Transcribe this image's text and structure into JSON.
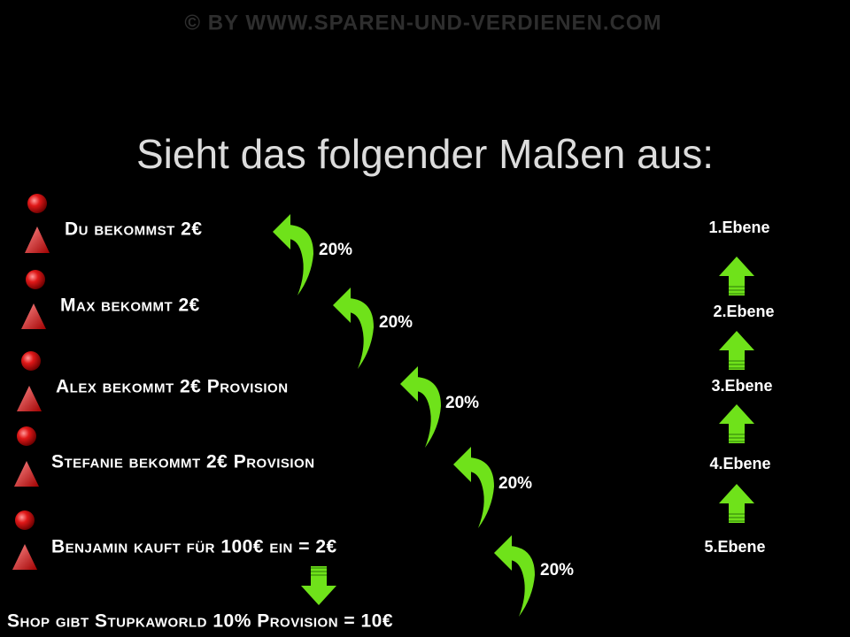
{
  "watermark": "© BY WWW.SPAREN-UND-VERDIENEN.COM",
  "title": "Sieht das folgender Maßen aus:",
  "rows": [
    {
      "label": "Du bekommst 2€",
      "percent": "20%"
    },
    {
      "label": "Max bekommt 2€",
      "percent": "20%"
    },
    {
      "label": "Alex bekommt 2€ Provision",
      "percent": "20%"
    },
    {
      "label": "Stefanie bekommt 2€ Provision",
      "percent": "20%"
    },
    {
      "label": "Benjamin kauft für 100€ ein = 2€",
      "percent": "20%"
    }
  ],
  "levels": [
    "1.Ebene",
    "2.Ebene",
    "3.Ebene",
    "4.Ebene",
    "5.Ebene"
  ],
  "footer": "Shop gibt Stupkaworld 10% Provision = 10€"
}
